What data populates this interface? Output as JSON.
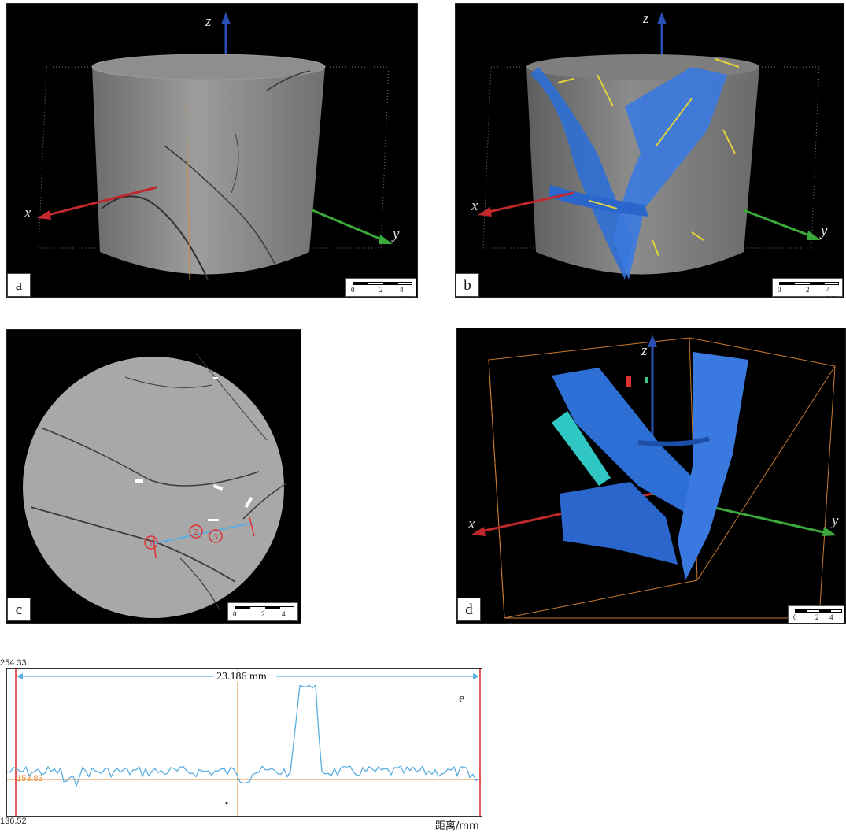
{
  "panels": {
    "a": {
      "label": "a"
    },
    "b": {
      "label": "b"
    },
    "c": {
      "label": "c"
    },
    "d": {
      "label": "d"
    },
    "e": {
      "label": "e"
    }
  },
  "axes": {
    "x": "x",
    "y": "y",
    "z": "z"
  },
  "scalebar": {
    "tick_0": "0",
    "tick_2": "2",
    "tick_4": "4 mm"
  },
  "markers": {
    "m1": "1",
    "m2": "2",
    "m3": "3"
  },
  "profile": {
    "y_max": "254.33",
    "y_min": "136.52",
    "mean": "153.83",
    "distance": "23.186 mm",
    "xlabel": "距离/mm"
  },
  "colors": {
    "x_axis": "#c0282b",
    "y_axis": "#3aa83a",
    "z_axis": "#2a4fb4",
    "fracture": "#2e6fd6",
    "mineral": "#e2d43a",
    "profile_line": "#5aaee0",
    "mean_line": "#e08a2c"
  }
}
